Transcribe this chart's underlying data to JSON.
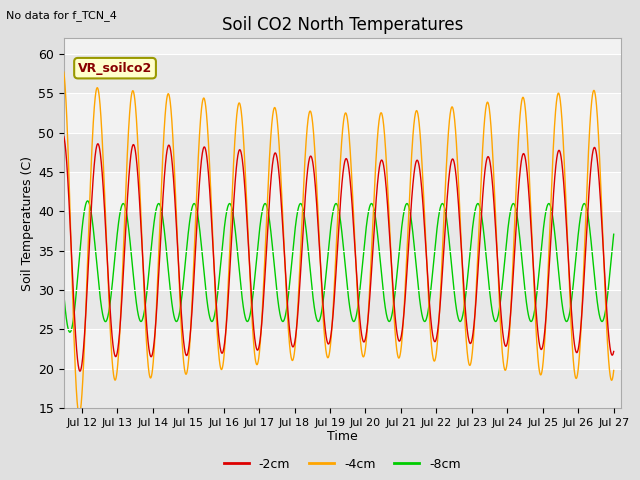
{
  "title": "Soil CO2 North Temperatures",
  "xlabel": "Time",
  "ylabel": "Soil Temperatures (C)",
  "note": "No data for f_TCN_4",
  "annotation": "VR_soilco2",
  "ylim": [
    15,
    62
  ],
  "yticks": [
    15,
    20,
    25,
    30,
    35,
    40,
    45,
    50,
    55,
    60
  ],
  "xtick_labels": [
    "Jul 12",
    "Jul 13",
    "Jul 14",
    "Jul 15",
    "Jul 16",
    "Jul 17",
    "Jul 18",
    "Jul 19",
    "Jul 20",
    "Jul 21",
    "Jul 22",
    "Jul 23",
    "Jul 24",
    "Jul 25",
    "Jul 26",
    "Jul 27"
  ],
  "line_colors": [
    "#dd0000",
    "#ffa500",
    "#00cc00"
  ],
  "line_labels": [
    "-2cm",
    "-4cm",
    "-8cm"
  ],
  "bg_color": "#e0e0e0",
  "plot_bg_color": "#f2f2f2",
  "legend_bg": "#ffffcc",
  "legend_border": "#999900",
  "stripe_color": "#e8e8e8",
  "grid_color": "#ffffff"
}
